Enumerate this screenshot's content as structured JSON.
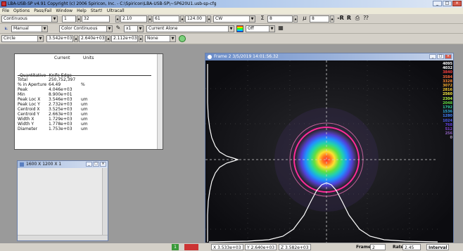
{
  "window": {
    "title": "LBA-USB-SP   v4.91   Copyright (c) 2006 Spiricon, Inc. - C:\\Spiricon\\LBA-USB-SP\\~SP620U1.usb-sp-cfg",
    "minimize": "_",
    "maximize": "□",
    "close": "×"
  },
  "menu": [
    "File",
    "Options",
    "Pass/Fail",
    "Window",
    "Help",
    "Start!",
    "Ultracall"
  ],
  "toolbar1": {
    "mode": "Continuous",
    "val1": "1",
    "val2": "32",
    "val3": "2.10",
    "val4": "61",
    "val5": "124.00",
    "wave": "CW",
    "sum_icon": "Σ",
    "sum_val": "8",
    "mu_icon": "μ",
    "mu_val": "8",
    "r_label": "R"
  },
  "toolbar2": {
    "trigger": "Manual",
    "palette": "Color Continuous",
    "zoom": "x1",
    "align": "Current Alone",
    "grid": "Off"
  },
  "toolbar3": {
    "shape": "Circle",
    "v1": "3.542e+03",
    "v2": "2.640e+03",
    "v3": "2.112e+03",
    "v4": "None"
  },
  "results": {
    "col_current": "Current",
    "col_units": "Units",
    "section": "Quantitative--Knife Edge",
    "rows": [
      {
        "label": "Total",
        "value": "250,752,397",
        "unit": ""
      },
      {
        "label": "% in Aperture",
        "value": "64.49",
        "unit": "%"
      },
      {
        "label": "Peak",
        "value": "4.046e+03",
        "unit": ""
      },
      {
        "label": "Min",
        "value": "8.900e+01",
        "unit": ""
      },
      {
        "label": "Peak Loc X",
        "value": "3.546e+03",
        "unit": "um"
      },
      {
        "label": "Peak Loc Y",
        "value": "2.732e+03",
        "unit": "um"
      },
      {
        "label": "Centroid X",
        "value": "3.525e+03",
        "unit": "um"
      },
      {
        "label": "Centroid Y",
        "value": "2.663e+03",
        "unit": "um"
      },
      {
        "label": "Width X",
        "value": "1.729e+03",
        "unit": "um"
      },
      {
        "label": "Width Y",
        "value": "1.778e+03",
        "unit": "um"
      },
      {
        "label": "Diameter",
        "value": "1.753e+03",
        "unit": "um"
      }
    ]
  },
  "small_window": {
    "title": "1600 X 1200 X 1"
  },
  "frame": {
    "title": "Frame 2 3/5/2019 14:01:56.32",
    "scale": [
      "4095",
      "4032",
      "3840",
      "3584",
      "3328",
      "3072",
      "2816",
      "2560",
      "2304",
      "2048",
      "1792",
      "1536",
      "1280",
      "1024",
      "768",
      "512",
      "256",
      "0"
    ],
    "scale_colors": [
      "#ffffff",
      "#ffffff",
      "#ff4040",
      "#ff6a3a",
      "#ff8a30",
      "#ffb030",
      "#ffd030",
      "#fff040",
      "#b0f040",
      "#60e040",
      "#30d0a0",
      "#30b0e0",
      "#4080ff",
      "#5060f0",
      "#6040e0",
      "#8040d0",
      "#9060c0",
      "#b0a0c0"
    ]
  },
  "status": {
    "indicator": "1",
    "x": "X 3.533e+03",
    "y": "Y 2.640e+03",
    "z": "Z 3.582e+03",
    "frame_label": "Frame",
    "frame_val": "2",
    "rate_label": "Rate",
    "rate_val": "2.45",
    "interval_label": "Interval"
  }
}
